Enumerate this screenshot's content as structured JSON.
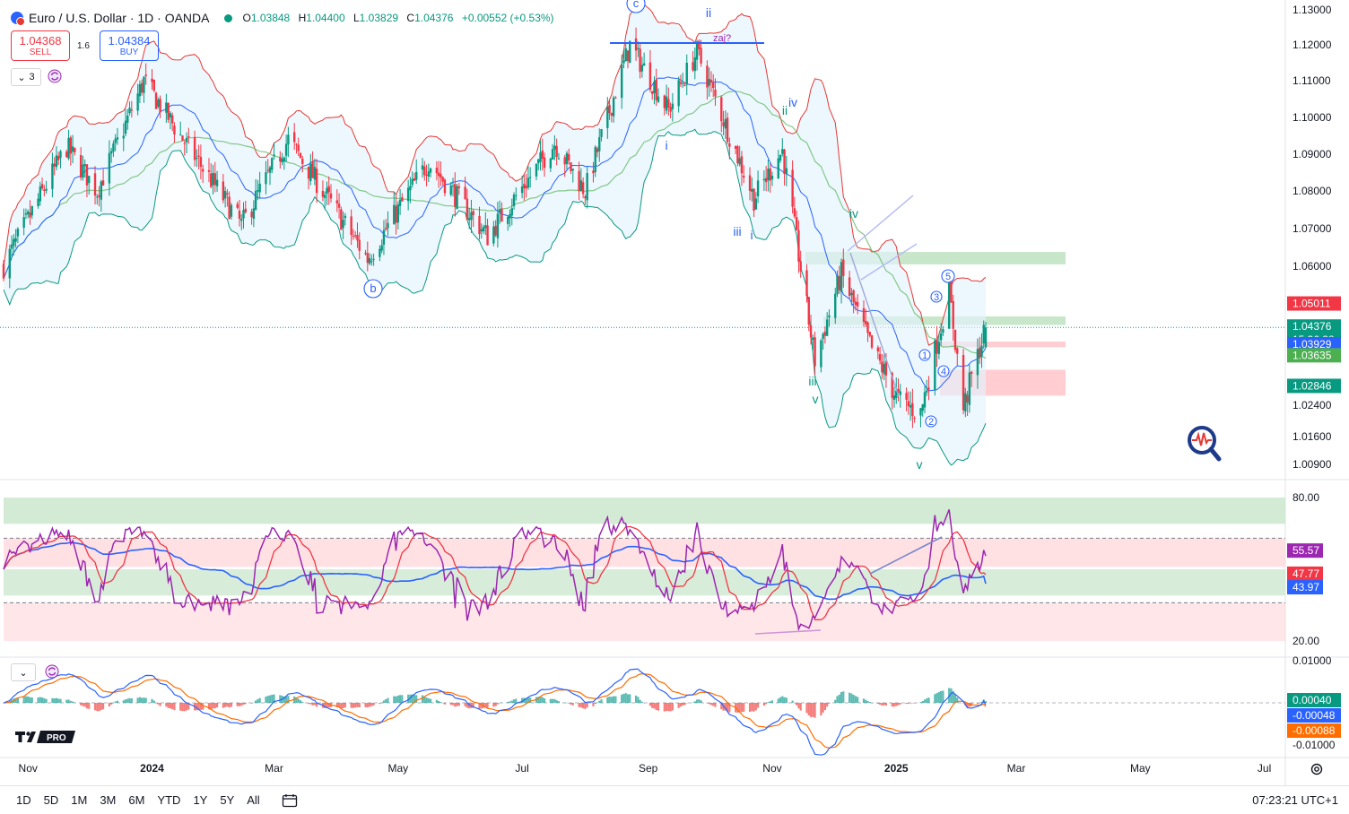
{
  "header": {
    "title": "Euro / U.S. Dollar · 1D · OANDA",
    "ohlc": {
      "o_label": "O",
      "o": "1.03848",
      "h_label": "H",
      "h": "1.04400",
      "l_label": "L",
      "l": "1.03829",
      "c_label": "C",
      "c": "1.04376",
      "change": "+0.00552 (+0.53%)"
    }
  },
  "trade": {
    "sell_price": "1.04368",
    "sell_label": "SELL",
    "spread": "1.6",
    "buy_price": "1.04384",
    "buy_label": "BUY"
  },
  "indicator_collapse_count": "3",
  "price_axis_ticks": [
    "1.13000",
    "1.12000",
    "1.11000",
    "1.10000",
    "1.09000",
    "1.08000",
    "1.07000",
    "1.06000",
    "1.05000",
    "1.04000",
    "1.03000",
    "1.02400",
    "1.01600",
    "1.00900"
  ],
  "price_badges": [
    {
      "text": "1.05011",
      "color": "#f23645"
    },
    {
      "text": "1.04376",
      "color": "#089981"
    },
    {
      "text": "15:36:38",
      "color": "#089981"
    },
    {
      "text": "1.03929",
      "color": "#2962ff"
    },
    {
      "text": "1.03635",
      "color": "#4caf50"
    },
    {
      "text": "1.02846",
      "color": "#089981"
    }
  ],
  "rsi_axis_ticks": [
    "80.00",
    "60.00",
    "40.00",
    "20.00"
  ],
  "rsi_badges": [
    {
      "text": "55.57",
      "color": "#9c27b0"
    },
    {
      "text": "47.77",
      "color": "#f23645"
    },
    {
      "text": "43.97",
      "color": "#2962ff"
    }
  ],
  "macd_axis_ticks": [
    "0.01000",
    "-0.01000"
  ],
  "macd_badges": [
    {
      "text": "0.00040",
      "color": "#089981"
    },
    {
      "text": "-0.00048",
      "color": "#2962ff"
    },
    {
      "text": "-0.00088",
      "color": "#ff6d00"
    }
  ],
  "time_axis": [
    "Nov",
    "2024",
    "Mar",
    "May",
    "Jul",
    "Sep",
    "Nov",
    "2025",
    "Mar",
    "May",
    "Jul"
  ],
  "wave_labels": {
    "c": "c",
    "b": "b",
    "ii_top": "ii",
    "zaj": "zaj?",
    "i_1": "i",
    "ii_iv": "ii",
    "iv_top": "iv",
    "iii_1": "iii",
    "i_2": "i",
    "iv_2": "iv",
    "iii_2": "iii",
    "v_1": "v",
    "v_2": "v",
    "n1": "1",
    "n2": "2",
    "n3": "3",
    "n4": "4",
    "n5": "5"
  },
  "timeframes": [
    "1D",
    "5D",
    "1M",
    "3M",
    "6M",
    "YTD",
    "1Y",
    "5Y",
    "All"
  ],
  "clock": "07:23:21 UTC+1",
  "colors": {
    "up": "#089981",
    "down": "#f23645",
    "bb_upper": "#e53935",
    "bb_lower": "#089981",
    "bb_fill": "#e3f2fd",
    "ma_blue": "#2962ff",
    "ma_green": "#66bb6a",
    "rsi": "#9c27b0",
    "rsi_ma": "#f23645",
    "rsi_ma2": "#2962ff"
  },
  "chart_data": [
    {
      "type": "candlestick",
      "symbol": "EURUSD",
      "timeframe": "1D",
      "x_range": [
        "Nov 2023",
        "Jul 2025"
      ],
      "ylim": [
        1.005,
        1.13
      ],
      "anchors": [
        [
          "2023-10-20",
          1.06
        ],
        [
          "2023-11-20",
          1.092
        ],
        [
          "2023-12-05",
          1.08
        ],
        [
          "2023-12-28",
          1.11
        ],
        [
          "2024-01-15",
          1.095
        ],
        [
          "2024-02-14",
          1.071
        ],
        [
          "2024-03-08",
          1.094
        ],
        [
          "2024-04-16",
          1.062
        ],
        [
          "2024-05-16",
          1.088
        ],
        [
          "2024-06-14",
          1.068
        ],
        [
          "2024-07-17",
          1.093
        ],
        [
          "2024-08-01",
          1.08
        ],
        [
          "2024-08-23",
          1.12
        ],
        [
          "2024-09-11",
          1.102
        ],
        [
          "2024-09-25",
          1.118
        ],
        [
          "2024-10-23",
          1.078
        ],
        [
          "2024-11-06",
          1.091
        ],
        [
          "2024-11-22",
          1.035
        ],
        [
          "2024-12-05",
          1.058
        ],
        [
          "2024-12-20",
          1.038
        ],
        [
          "2025-01-02",
          1.025
        ],
        [
          "2025-01-13",
          1.022
        ],
        [
          "2025-01-27",
          1.053
        ],
        [
          "2025-02-03",
          1.023
        ],
        [
          "2025-02-14",
          1.0438
        ]
      ],
      "last_close": 1.04376
    },
    {
      "type": "line",
      "name": "RSI",
      "ylim": [
        20,
        80
      ],
      "last": [
        55.57,
        47.77,
        43.97
      ]
    },
    {
      "type": "bar",
      "name": "MACD",
      "ylim": [
        -0.01,
        0.01
      ],
      "last": [
        0.0004,
        -0.00048,
        -0.00088
      ]
    }
  ]
}
